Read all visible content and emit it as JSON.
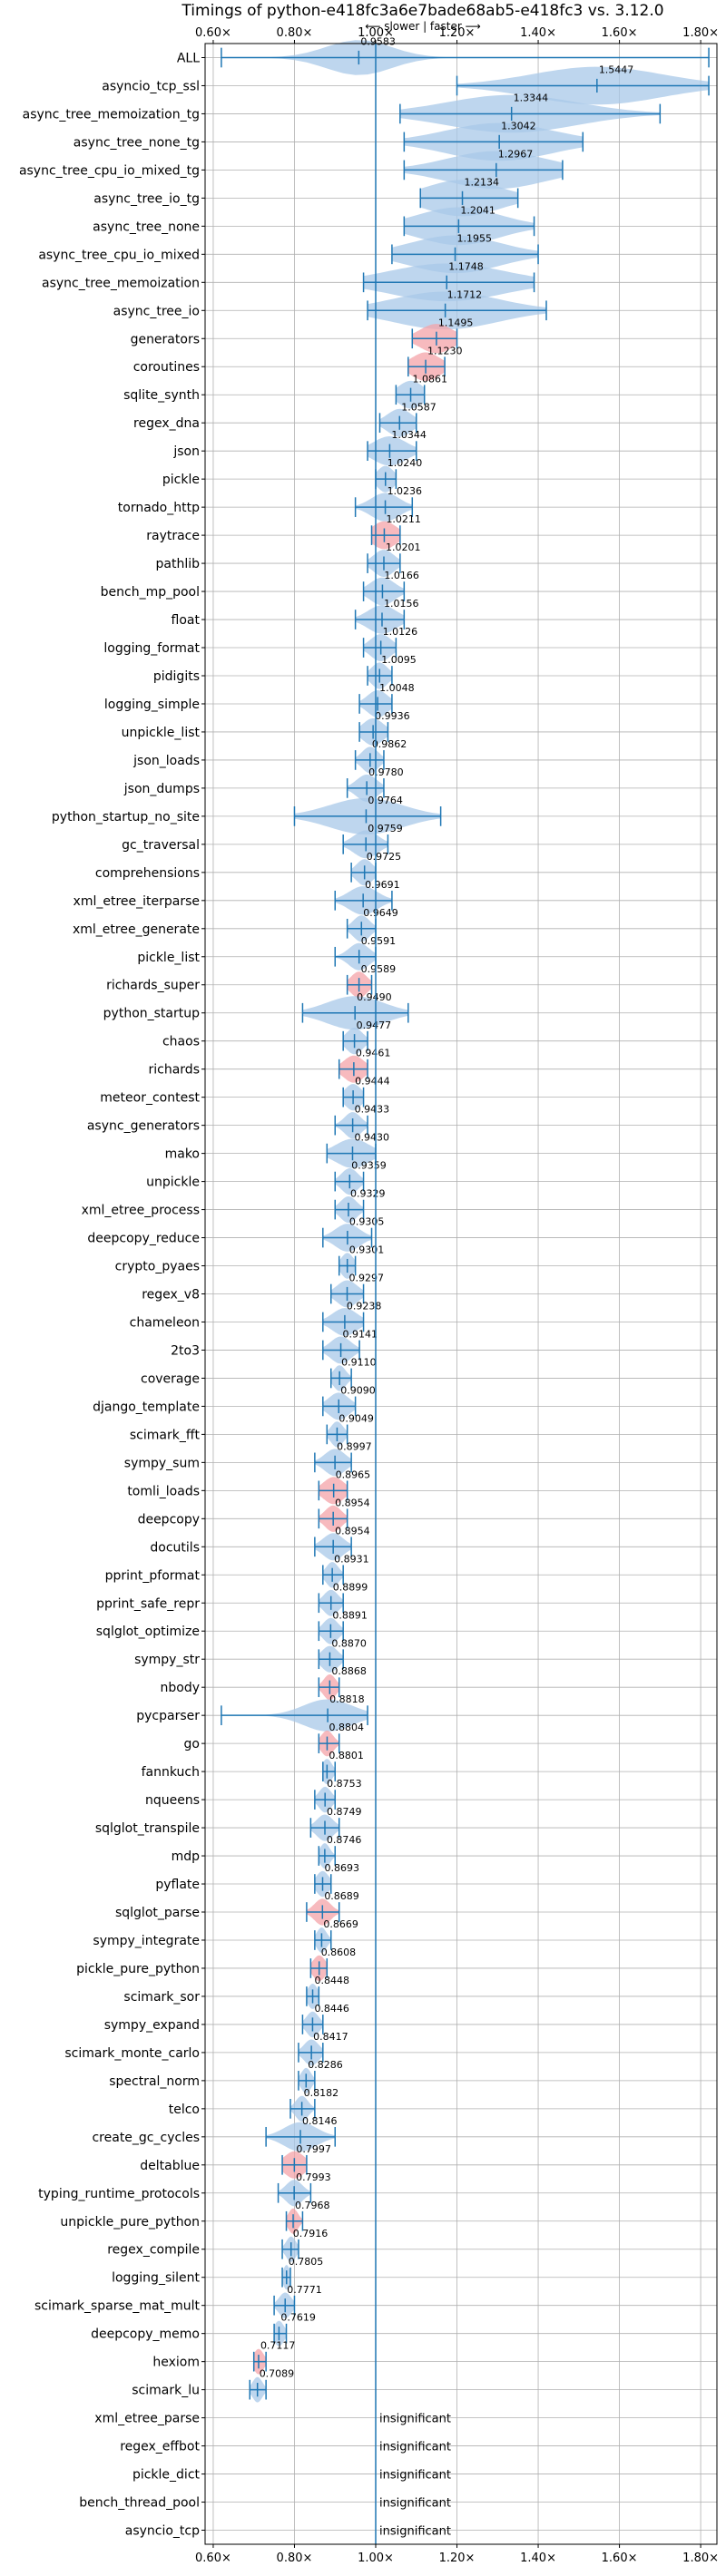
{
  "chart_data": {
    "type": "violin",
    "title": "Timings of python-e418fc3a6e7bade68ab5-e418fc3 vs. 3.12.0",
    "subtitle": "⟵ slower | faster ⟶",
    "xlim": [
      0.58,
      1.84
    ],
    "xticks": [
      0.6,
      0.8,
      1.0,
      1.2,
      1.4,
      1.6,
      1.8
    ],
    "xtick_labels": [
      "0.60×",
      "0.80×",
      "1.00×",
      "1.20×",
      "1.40×",
      "1.60×",
      "1.80×"
    ],
    "reference_line": 1.0,
    "grid": true,
    "insignificant_label": "insignificant",
    "colors": {
      "significant": "#a8c8e8",
      "highlight": "#f4a3a8",
      "line": "#1f77b4",
      "ref": "#1f77b4"
    },
    "benchmarks": [
      {
        "name": "ALL",
        "mean": 0.9583,
        "label": "0.9583",
        "min": 0.62,
        "max": 1.82,
        "spread": 0.08,
        "highlight": false
      },
      {
        "name": "asyncio_tcp_ssl",
        "mean": 1.5447,
        "label": "1.5447",
        "min": 1.2,
        "max": 1.82,
        "spread": 0.16,
        "highlight": false
      },
      {
        "name": "async_tree_memoization_tg",
        "mean": 1.3344,
        "label": "1.3344",
        "min": 1.06,
        "max": 1.7,
        "spread": 0.16,
        "highlight": false
      },
      {
        "name": "async_tree_none_tg",
        "mean": 1.3042,
        "label": "1.3042",
        "min": 1.07,
        "max": 1.51,
        "spread": 0.13,
        "highlight": false
      },
      {
        "name": "async_tree_cpu_io_mixed_tg",
        "mean": 1.2967,
        "label": "1.2967",
        "min": 1.07,
        "max": 1.46,
        "spread": 0.12,
        "highlight": false
      },
      {
        "name": "async_tree_io_tg",
        "mean": 1.2134,
        "label": "1.2134",
        "min": 1.11,
        "max": 1.35,
        "spread": 0.09,
        "highlight": false
      },
      {
        "name": "async_tree_none",
        "mean": 1.2041,
        "label": "1.2041",
        "min": 1.07,
        "max": 1.39,
        "spread": 0.1,
        "highlight": false
      },
      {
        "name": "async_tree_cpu_io_mixed",
        "mean": 1.1955,
        "label": "1.1955",
        "min": 1.04,
        "max": 1.4,
        "spread": 0.11,
        "highlight": false
      },
      {
        "name": "async_tree_memoization",
        "mean": 1.1748,
        "label": "1.1748",
        "min": 0.97,
        "max": 1.39,
        "spread": 0.14,
        "highlight": false
      },
      {
        "name": "async_tree_io",
        "mean": 1.1712,
        "label": "1.1712",
        "min": 0.98,
        "max": 1.42,
        "spread": 0.13,
        "highlight": false
      },
      {
        "name": "generators",
        "mean": 1.1495,
        "label": "1.1495",
        "min": 1.09,
        "max": 1.2,
        "spread": 0.04,
        "highlight": true
      },
      {
        "name": "coroutines",
        "mean": 1.123,
        "label": "1.1230",
        "min": 1.08,
        "max": 1.17,
        "spread": 0.035,
        "highlight": true
      },
      {
        "name": "sqlite_synth",
        "mean": 1.0861,
        "label": "1.0861",
        "min": 1.05,
        "max": 1.12,
        "spread": 0.03,
        "highlight": false
      },
      {
        "name": "regex_dna",
        "mean": 1.0587,
        "label": "1.0587",
        "min": 1.01,
        "max": 1.1,
        "spread": 0.03,
        "highlight": false
      },
      {
        "name": "json",
        "mean": 1.0344,
        "label": "1.0344",
        "min": 0.98,
        "max": 1.1,
        "spread": 0.04,
        "highlight": false
      },
      {
        "name": "pickle",
        "mean": 1.024,
        "label": "1.0240",
        "min": 1.0,
        "max": 1.05,
        "spread": 0.02,
        "highlight": false
      },
      {
        "name": "tornado_http",
        "mean": 1.0236,
        "label": "1.0236",
        "min": 0.95,
        "max": 1.09,
        "spread": 0.035,
        "highlight": false
      },
      {
        "name": "raytrace",
        "mean": 1.0211,
        "label": "1.0211",
        "min": 0.99,
        "max": 1.06,
        "spread": 0.03,
        "highlight": true
      },
      {
        "name": "pathlib",
        "mean": 1.0201,
        "label": "1.0201",
        "min": 0.98,
        "max": 1.06,
        "spread": 0.025,
        "highlight": false
      },
      {
        "name": "bench_mp_pool",
        "mean": 1.0166,
        "label": "1.0166",
        "min": 0.97,
        "max": 1.07,
        "spread": 0.03,
        "highlight": false
      },
      {
        "name": "float",
        "mean": 1.0156,
        "label": "1.0156",
        "min": 0.95,
        "max": 1.07,
        "spread": 0.035,
        "highlight": false
      },
      {
        "name": "logging_format",
        "mean": 1.0126,
        "label": "1.0126",
        "min": 0.97,
        "max": 1.05,
        "spread": 0.025,
        "highlight": false
      },
      {
        "name": "pidigits",
        "mean": 1.0095,
        "label": "1.0095",
        "min": 0.98,
        "max": 1.04,
        "spread": 0.02,
        "highlight": false
      },
      {
        "name": "logging_simple",
        "mean": 1.0048,
        "label": "1.0048",
        "min": 0.96,
        "max": 1.04,
        "spread": 0.025,
        "highlight": false
      },
      {
        "name": "unpickle_list",
        "mean": 0.9936,
        "label": "0.9936",
        "min": 0.96,
        "max": 1.03,
        "spread": 0.025,
        "highlight": false
      },
      {
        "name": "json_loads",
        "mean": 0.9862,
        "label": "0.9862",
        "min": 0.95,
        "max": 1.02,
        "spread": 0.02,
        "highlight": false
      },
      {
        "name": "json_dumps",
        "mean": 0.978,
        "label": "0.9780",
        "min": 0.93,
        "max": 1.02,
        "spread": 0.025,
        "highlight": false
      },
      {
        "name": "python_startup_no_site",
        "mean": 0.9764,
        "label": "0.9764",
        "min": 0.8,
        "max": 1.16,
        "spread": 0.09,
        "highlight": false
      },
      {
        "name": "gc_traversal",
        "mean": 0.9759,
        "label": "0.9759",
        "min": 0.92,
        "max": 1.03,
        "spread": 0.03,
        "highlight": false
      },
      {
        "name": "comprehensions",
        "mean": 0.9725,
        "label": "0.9725",
        "min": 0.94,
        "max": 1.0,
        "spread": 0.02,
        "highlight": false
      },
      {
        "name": "xml_etree_iterparse",
        "mean": 0.9691,
        "label": "0.9691",
        "min": 0.9,
        "max": 1.04,
        "spread": 0.035,
        "highlight": false
      },
      {
        "name": "xml_etree_generate",
        "mean": 0.9649,
        "label": "0.9649",
        "min": 0.93,
        "max": 1.0,
        "spread": 0.02,
        "highlight": false
      },
      {
        "name": "pickle_list",
        "mean": 0.9591,
        "label": "0.9591",
        "min": 0.9,
        "max": 1.0,
        "spread": 0.025,
        "highlight": false
      },
      {
        "name": "richards_super",
        "mean": 0.9589,
        "label": "0.9589",
        "min": 0.93,
        "max": 0.99,
        "spread": 0.02,
        "highlight": true
      },
      {
        "name": "python_startup",
        "mean": 0.949,
        "label": "0.9490",
        "min": 0.82,
        "max": 1.08,
        "spread": 0.07,
        "highlight": false
      },
      {
        "name": "chaos",
        "mean": 0.9477,
        "label": "0.9477",
        "min": 0.92,
        "max": 0.98,
        "spread": 0.02,
        "highlight": false
      },
      {
        "name": "richards",
        "mean": 0.9461,
        "label": "0.9461",
        "min": 0.91,
        "max": 0.98,
        "spread": 0.025,
        "highlight": true
      },
      {
        "name": "meteor_contest",
        "mean": 0.9444,
        "label": "0.9444",
        "min": 0.92,
        "max": 0.97,
        "spread": 0.02,
        "highlight": false
      },
      {
        "name": "async_generators",
        "mean": 0.9433,
        "label": "0.9433",
        "min": 0.9,
        "max": 0.98,
        "spread": 0.02,
        "highlight": false
      },
      {
        "name": "mako",
        "mean": 0.943,
        "label": "0.9430",
        "min": 0.88,
        "max": 1.0,
        "spread": 0.04,
        "highlight": false
      },
      {
        "name": "unpickle",
        "mean": 0.9359,
        "label": "0.9359",
        "min": 0.9,
        "max": 0.97,
        "spread": 0.02,
        "highlight": false
      },
      {
        "name": "xml_etree_process",
        "mean": 0.9329,
        "label": "0.9329",
        "min": 0.9,
        "max": 0.97,
        "spread": 0.02,
        "highlight": false
      },
      {
        "name": "deepcopy_reduce",
        "mean": 0.9305,
        "label": "0.9305",
        "min": 0.87,
        "max": 0.99,
        "spread": 0.03,
        "highlight": false
      },
      {
        "name": "crypto_pyaes",
        "mean": 0.9301,
        "label": "0.9301",
        "min": 0.91,
        "max": 0.95,
        "spread": 0.015,
        "highlight": false
      },
      {
        "name": "regex_v8",
        "mean": 0.9297,
        "label": "0.9297",
        "min": 0.89,
        "max": 0.97,
        "spread": 0.025,
        "highlight": false
      },
      {
        "name": "chameleon",
        "mean": 0.9238,
        "label": "0.9238",
        "min": 0.87,
        "max": 0.97,
        "spread": 0.03,
        "highlight": false
      },
      {
        "name": "2to3",
        "mean": 0.9141,
        "label": "0.9141",
        "min": 0.87,
        "max": 0.96,
        "spread": 0.025,
        "highlight": false
      },
      {
        "name": "coverage",
        "mean": 0.911,
        "label": "0.9110",
        "min": 0.89,
        "max": 0.94,
        "spread": 0.015,
        "highlight": false
      },
      {
        "name": "django_template",
        "mean": 0.909,
        "label": "0.9090",
        "min": 0.87,
        "max": 0.95,
        "spread": 0.025,
        "highlight": false
      },
      {
        "name": "scimark_fft",
        "mean": 0.9049,
        "label": "0.9049",
        "min": 0.88,
        "max": 0.93,
        "spread": 0.015,
        "highlight": false
      },
      {
        "name": "sympy_sum",
        "mean": 0.8997,
        "label": "0.8997",
        "min": 0.85,
        "max": 0.94,
        "spread": 0.025,
        "highlight": false
      },
      {
        "name": "tomli_loads",
        "mean": 0.8965,
        "label": "0.8965",
        "min": 0.86,
        "max": 0.93,
        "spread": 0.025,
        "highlight": true
      },
      {
        "name": "deepcopy",
        "mean": 0.8954,
        "label": "0.8954",
        "min": 0.86,
        "max": 0.93,
        "spread": 0.02,
        "highlight": true
      },
      {
        "name": "docutils",
        "mean": 0.8954,
        "label": "0.8954",
        "min": 0.85,
        "max": 0.94,
        "spread": 0.025,
        "highlight": false
      },
      {
        "name": "pprint_pformat",
        "mean": 0.8931,
        "label": "0.8931",
        "min": 0.87,
        "max": 0.92,
        "spread": 0.015,
        "highlight": false
      },
      {
        "name": "pprint_safe_repr",
        "mean": 0.8899,
        "label": "0.8899",
        "min": 0.86,
        "max": 0.92,
        "spread": 0.018,
        "highlight": false
      },
      {
        "name": "sqlglot_optimize",
        "mean": 0.8891,
        "label": "0.8891",
        "min": 0.86,
        "max": 0.92,
        "spread": 0.018,
        "highlight": false
      },
      {
        "name": "sympy_str",
        "mean": 0.887,
        "label": "0.8870",
        "min": 0.86,
        "max": 0.92,
        "spread": 0.02,
        "highlight": false
      },
      {
        "name": "nbody",
        "mean": 0.8868,
        "label": "0.8868",
        "min": 0.86,
        "max": 0.91,
        "spread": 0.015,
        "highlight": true
      },
      {
        "name": "pycparser",
        "mean": 0.8818,
        "label": "0.8818",
        "min": 0.62,
        "max": 0.98,
        "spread": 0.06,
        "highlight": false
      },
      {
        "name": "go",
        "mean": 0.8804,
        "label": "0.8804",
        "min": 0.86,
        "max": 0.91,
        "spread": 0.015,
        "highlight": true
      },
      {
        "name": "fannkuch",
        "mean": 0.8801,
        "label": "0.8801",
        "min": 0.87,
        "max": 0.9,
        "spread": 0.012,
        "highlight": false
      },
      {
        "name": "nqueens",
        "mean": 0.8753,
        "label": "0.8753",
        "min": 0.85,
        "max": 0.9,
        "spread": 0.015,
        "highlight": false
      },
      {
        "name": "sqlglot_transpile",
        "mean": 0.8749,
        "label": "0.8749",
        "min": 0.84,
        "max": 0.91,
        "spread": 0.02,
        "highlight": false
      },
      {
        "name": "mdp",
        "mean": 0.8746,
        "label": "0.8746",
        "min": 0.86,
        "max": 0.9,
        "spread": 0.012,
        "highlight": false
      },
      {
        "name": "pyflate",
        "mean": 0.8693,
        "label": "0.8693",
        "min": 0.85,
        "max": 0.89,
        "spread": 0.015,
        "highlight": false
      },
      {
        "name": "sqlglot_parse",
        "mean": 0.8689,
        "label": "0.8689",
        "min": 0.83,
        "max": 0.91,
        "spread": 0.02,
        "highlight": true
      },
      {
        "name": "sympy_integrate",
        "mean": 0.8669,
        "label": "0.8669",
        "min": 0.85,
        "max": 0.89,
        "spread": 0.012,
        "highlight": false
      },
      {
        "name": "pickle_pure_python",
        "mean": 0.8608,
        "label": "0.8608",
        "min": 0.84,
        "max": 0.88,
        "spread": 0.015,
        "highlight": true
      },
      {
        "name": "scimark_sor",
        "mean": 0.8448,
        "label": "0.8448",
        "min": 0.83,
        "max": 0.86,
        "spread": 0.012,
        "highlight": false
      },
      {
        "name": "sympy_expand",
        "mean": 0.8446,
        "label": "0.8446",
        "min": 0.82,
        "max": 0.87,
        "spread": 0.015,
        "highlight": false
      },
      {
        "name": "scimark_monte_carlo",
        "mean": 0.8417,
        "label": "0.8417",
        "min": 0.81,
        "max": 0.87,
        "spread": 0.018,
        "highlight": false
      },
      {
        "name": "spectral_norm",
        "mean": 0.8286,
        "label": "0.8286",
        "min": 0.81,
        "max": 0.85,
        "spread": 0.012,
        "highlight": false
      },
      {
        "name": "telco",
        "mean": 0.8182,
        "label": "0.8182",
        "min": 0.79,
        "max": 0.85,
        "spread": 0.015,
        "highlight": false
      },
      {
        "name": "create_gc_cycles",
        "mean": 0.8146,
        "label": "0.8146",
        "min": 0.73,
        "max": 0.9,
        "spread": 0.04,
        "highlight": false
      },
      {
        "name": "deltablue",
        "mean": 0.7997,
        "label": "0.7997",
        "min": 0.77,
        "max": 0.83,
        "spread": 0.025,
        "highlight": true
      },
      {
        "name": "typing_runtime_protocols",
        "mean": 0.7993,
        "label": "0.7993",
        "min": 0.76,
        "max": 0.84,
        "spread": 0.02,
        "highlight": false
      },
      {
        "name": "unpickle_pure_python",
        "mean": 0.7968,
        "label": "0.7968",
        "min": 0.78,
        "max": 0.82,
        "spread": 0.012,
        "highlight": true
      },
      {
        "name": "regex_compile",
        "mean": 0.7916,
        "label": "0.7916",
        "min": 0.77,
        "max": 0.81,
        "spread": 0.012,
        "highlight": false
      },
      {
        "name": "logging_silent",
        "mean": 0.7805,
        "label": "0.7805",
        "min": 0.77,
        "max": 0.79,
        "spread": 0.008,
        "highlight": false
      },
      {
        "name": "scimark_sparse_mat_mult",
        "mean": 0.7771,
        "label": "0.7771",
        "min": 0.75,
        "max": 0.8,
        "spread": 0.015,
        "highlight": false
      },
      {
        "name": "deepcopy_memo",
        "mean": 0.7619,
        "label": "0.7619",
        "min": 0.75,
        "max": 0.78,
        "spread": 0.012,
        "highlight": false
      },
      {
        "name": "hexiom",
        "mean": 0.7117,
        "label": "0.7117",
        "min": 0.7,
        "max": 0.73,
        "spread": 0.012,
        "highlight": true
      },
      {
        "name": "scimark_lu",
        "mean": 0.7089,
        "label": "0.7089",
        "min": 0.69,
        "max": 0.73,
        "spread": 0.012,
        "highlight": false
      },
      {
        "name": "xml_etree_parse",
        "mean": null,
        "label": "",
        "insignificant": true
      },
      {
        "name": "regex_effbot",
        "mean": null,
        "label": "",
        "insignificant": true
      },
      {
        "name": "pickle_dict",
        "mean": null,
        "label": "",
        "insignificant": true
      },
      {
        "name": "bench_thread_pool",
        "mean": null,
        "label": "",
        "insignificant": true
      },
      {
        "name": "asyncio_tcp",
        "mean": null,
        "label": "",
        "insignificant": true
      }
    ]
  }
}
